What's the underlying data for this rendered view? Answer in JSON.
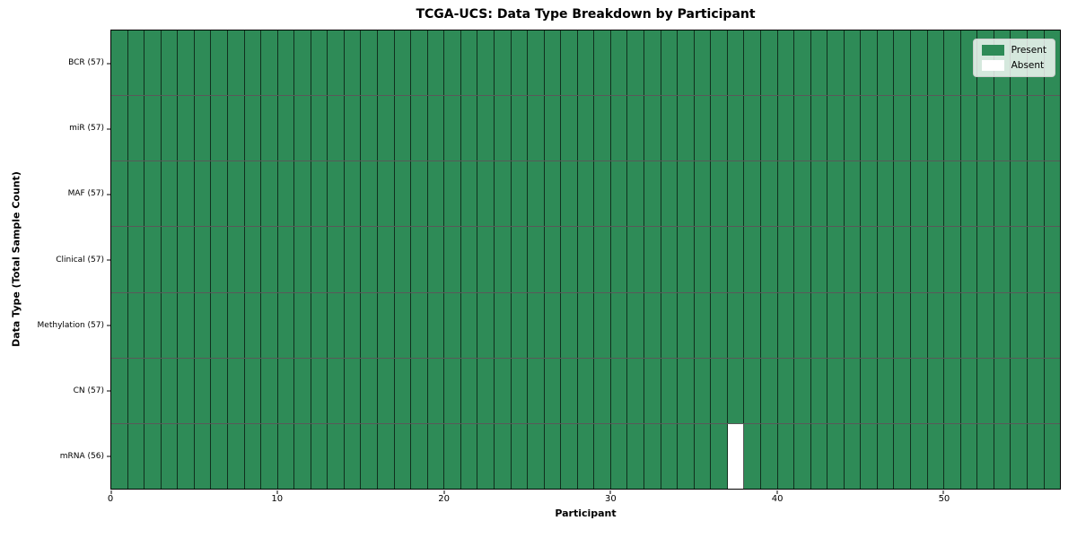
{
  "chart_data": {
    "type": "heatmap",
    "title": "TCGA-UCS: Data Type Breakdown by Participant",
    "xlabel": "Participant",
    "ylabel": "Data Type (Total Sample Count)",
    "xlim": [
      0,
      57
    ],
    "n_participants": 57,
    "x_ticks": [
      0,
      10,
      20,
      30,
      40,
      50
    ],
    "rows": [
      {
        "label": "BCR (57)",
        "present_count": 57,
        "absent_participants": []
      },
      {
        "label": "miR (57)",
        "present_count": 57,
        "absent_participants": []
      },
      {
        "label": "MAF (57)",
        "present_count": 57,
        "absent_participants": []
      },
      {
        "label": "Clinical (57)",
        "present_count": 57,
        "absent_participants": []
      },
      {
        "label": "Methylation (57)",
        "present_count": 57,
        "absent_participants": []
      },
      {
        "label": "CN (57)",
        "present_count": 57,
        "absent_participants": []
      },
      {
        "label": "mRNA (56)",
        "present_count": 56,
        "absent_participants": [
          37
        ]
      }
    ],
    "legend": [
      {
        "label": "Present",
        "color": "#2e8b57"
      },
      {
        "label": "Absent",
        "color": "#ffffff"
      }
    ],
    "legend_position": "upper right",
    "cell_border_color": "rgba(0,0,0,0.65)"
  }
}
